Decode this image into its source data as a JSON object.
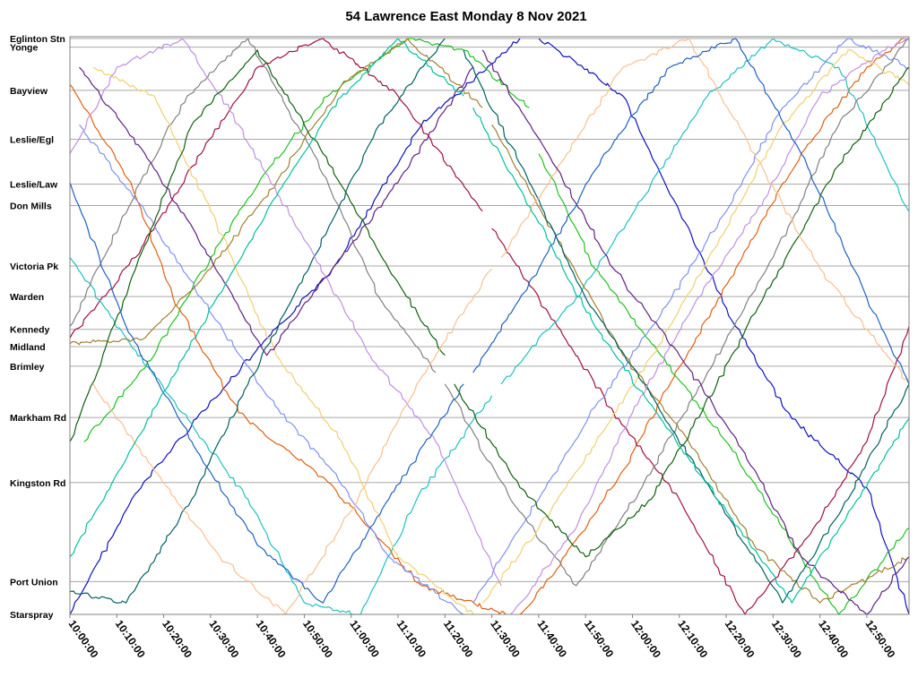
{
  "chart_data": {
    "type": "line",
    "title": "54 Lawrence East Monday 8 Nov 2021",
    "xlabel": "",
    "ylabel": "",
    "x_range": [
      "10:00:00",
      "12:59:00"
    ],
    "x_ticks": [
      "10:00:00",
      "10:10:00",
      "10:20:00",
      "10:30:00",
      "10:40:00",
      "10:50:00",
      "11:00:00",
      "11:10:00",
      "11:20:00",
      "11:30:00",
      "11:40:00",
      "11:50:00",
      "12:00:00",
      "12:10:00",
      "12:20:00",
      "12:30:00",
      "12:40:00",
      "12:50:00"
    ],
    "stops": [
      {
        "name": "Eglinton Stn",
        "pos": 0.0
      },
      {
        "name": "Yonge",
        "pos": 0.015
      },
      {
        "name": "Bayview",
        "pos": 0.09
      },
      {
        "name": "Leslie/Egl",
        "pos": 0.175
      },
      {
        "name": "Leslie/Law",
        "pos": 0.253
      },
      {
        "name": "Don Mills",
        "pos": 0.29
      },
      {
        "name": "Victoria Pk",
        "pos": 0.395
      },
      {
        "name": "Warden",
        "pos": 0.448
      },
      {
        "name": "Kennedy",
        "pos": 0.505
      },
      {
        "name": "Midland",
        "pos": 0.535
      },
      {
        "name": "Brimley",
        "pos": 0.569
      },
      {
        "name": "Markham Rd",
        "pos": 0.658
      },
      {
        "name": "Kingston Rd",
        "pos": 0.771
      },
      {
        "name": "Port Union",
        "pos": 0.943
      },
      {
        "name": "Starspray",
        "pos": 1.0
      }
    ],
    "grid": true,
    "legend": "none",
    "colors": [
      "#1010c0",
      "#e06010",
      "#20c020",
      "#a01040",
      "#20c0c0",
      "#8090f0",
      "#808080",
      "#f0d070",
      "#a08030",
      "#006060",
      "#c090e0",
      "#106010",
      "#f8c090",
      "#602080",
      "#2060c0",
      "#00c0a0"
    ],
    "series": [
      {
        "color": "#1010c0",
        "trips": [
          {
            "t": [
              0,
              14,
              27,
              39,
              56,
              75,
              96
            ],
            "s": [
              1.0,
              0.79,
              0.66,
              0.55,
              0.4,
              0.15,
              0.0
            ]
          },
          {
            "t": [
              100,
              104,
              118,
              130,
              142,
              154,
              170,
              179
            ],
            "s": [
              0.0,
              0.02,
              0.1,
              0.3,
              0.5,
              0.66,
              0.78,
              1.0
            ]
          }
        ]
      },
      {
        "color": "#e06010",
        "trips": [
          {
            "t": [
              0,
              13,
              22,
              36,
              55,
              75,
              93
            ],
            "s": [
              0.08,
              0.25,
              0.45,
              0.65,
              0.77,
              0.95,
              1.0
            ]
          },
          {
            "t": [
              96,
              104,
              118,
              128,
              142,
              156,
              170,
              178
            ],
            "s": [
              1.0,
              0.92,
              0.75,
              0.6,
              0.4,
              0.2,
              0.05,
              0.0
            ]
          }
        ]
      },
      {
        "color": "#20c020",
        "trips": [
          {
            "t": [
              3,
              18,
              30,
              42,
              55,
              72,
              84,
              98
            ],
            "s": [
              0.7,
              0.55,
              0.38,
              0.23,
              0.1,
              0.0,
              0.02,
              0.12
            ]
          },
          {
            "t": [
              100,
              112,
              126,
              140,
              152,
              164,
              179
            ],
            "s": [
              0.2,
              0.4,
              0.55,
              0.7,
              0.85,
              1.0,
              0.85
            ]
          }
        ]
      },
      {
        "color": "#a01040",
        "trips": [
          {
            "t": [
              0,
              14,
              28,
              40,
              54,
              70,
              88
            ],
            "s": [
              0.52,
              0.38,
              0.2,
              0.05,
              0.0,
              0.1,
              0.3
            ]
          },
          {
            "t": [
              90,
              104,
              116,
              130,
              144,
              158,
              170,
              179
            ],
            "s": [
              0.33,
              0.5,
              0.65,
              0.8,
              1.0,
              0.86,
              0.7,
              0.5
            ]
          }
        ]
      },
      {
        "color": "#20c0c0",
        "trips": [
          {
            "t": [
              0,
              12,
              24,
              38,
              50,
              62,
              74,
              90
            ],
            "s": [
              0.38,
              0.52,
              0.65,
              0.8,
              0.98,
              1.0,
              0.8,
              0.62
            ]
          },
          {
            "t": [
              92,
              108,
              122,
              136,
              150,
              164,
              179
            ],
            "s": [
              0.6,
              0.45,
              0.28,
              0.1,
              0.0,
              0.05,
              0.3
            ]
          }
        ]
      },
      {
        "color": "#8090f0",
        "trips": [
          {
            "t": [
              2,
              16,
              28,
              42,
              56,
              68,
              84
            ],
            "s": [
              0.15,
              0.3,
              0.45,
              0.62,
              0.75,
              0.9,
              1.0
            ]
          },
          {
            "t": [
              86,
              100,
              112,
              126,
              140,
              152,
              166,
              179
            ],
            "s": [
              0.98,
              0.8,
              0.64,
              0.48,
              0.3,
              0.12,
              0.0,
              0.05
            ]
          }
        ]
      },
      {
        "color": "#808080",
        "trips": [
          {
            "t": [
              0,
              15,
              25,
              38,
              52,
              66,
              78
            ],
            "s": [
              0.5,
              0.25,
              0.1,
              0.0,
              0.2,
              0.45,
              0.58
            ]
          },
          {
            "t": [
              80,
              94,
              108,
              122,
              136,
              150,
              164,
              179
            ],
            "s": [
              0.6,
              0.8,
              0.95,
              0.78,
              0.58,
              0.38,
              0.15,
              0.0
            ]
          }
        ]
      },
      {
        "color": "#f0d070",
        "trips": [
          {
            "t": [
              5,
              18,
              30,
              44,
              58,
              70,
              86
            ],
            "s": [
              0.05,
              0.1,
              0.3,
              0.55,
              0.7,
              0.9,
              1.0
            ]
          },
          {
            "t": [
              88,
              100,
              114,
              128,
              140,
              152,
              166,
              179
            ],
            "s": [
              0.98,
              0.85,
              0.68,
              0.5,
              0.33,
              0.15,
              0.02,
              0.08
            ]
          }
        ]
      },
      {
        "color": "#a08030",
        "trips": [
          {
            "t": [
              0,
              16,
              30,
              44,
              58,
              72,
              88
            ],
            "s": [
              0.53,
              0.52,
              0.4,
              0.25,
              0.08,
              0.0,
              0.12
            ]
          },
          {
            "t": [
              90,
              104,
              118,
              132,
              146,
              160,
              179
            ],
            "s": [
              0.15,
              0.35,
              0.55,
              0.7,
              0.88,
              0.98,
              0.9
            ]
          }
        ]
      },
      {
        "color": "#006060",
        "trips": [
          {
            "t": [
              0,
              12,
              26,
              38,
              52,
              66,
              80
            ],
            "s": [
              0.96,
              0.98,
              0.8,
              0.6,
              0.38,
              0.15,
              0.0
            ]
          },
          {
            "t": [
              84,
              98,
              110,
              124,
              138,
              152,
              166,
              179
            ],
            "s": [
              0.02,
              0.25,
              0.45,
              0.62,
              0.8,
              0.98,
              0.8,
              0.6
            ]
          }
        ]
      },
      {
        "color": "#c090e0",
        "trips": [
          {
            "t": [
              0,
              10,
              24,
              36,
              50,
              64,
              78,
              92
            ],
            "s": [
              0.2,
              0.05,
              0.0,
              0.15,
              0.35,
              0.55,
              0.7,
              0.95
            ]
          },
          {
            "t": [
              94,
              108,
              120,
              134,
              148,
              160,
              174,
              179
            ],
            "s": [
              1.0,
              0.85,
              0.65,
              0.45,
              0.28,
              0.1,
              0.02,
              0.0
            ]
          }
        ]
      },
      {
        "color": "#106010",
        "trips": [
          {
            "t": [
              0,
              14,
              26,
              40,
              54,
              68,
              80
            ],
            "s": [
              0.7,
              0.4,
              0.15,
              0.02,
              0.2,
              0.4,
              0.55
            ]
          },
          {
            "t": [
              82,
              96,
              110,
              124,
              138,
              150,
              164,
              179
            ],
            "s": [
              0.6,
              0.78,
              0.9,
              0.8,
              0.6,
              0.42,
              0.22,
              0.05
            ]
          }
        ]
      },
      {
        "color": "#f8c090",
        "trips": [
          {
            "t": [
              5,
              18,
              32,
              46,
              60,
              74,
              90
            ],
            "s": [
              0.6,
              0.75,
              0.9,
              1.0,
              0.82,
              0.6,
              0.4
            ]
          },
          {
            "t": [
              92,
              106,
              118,
              132,
              146,
              160,
              179
            ],
            "s": [
              0.38,
              0.2,
              0.05,
              0.0,
              0.2,
              0.4,
              0.6
            ]
          }
        ]
      },
      {
        "color": "#602080",
        "trips": [
          {
            "t": [
              2,
              16,
              30,
              42,
              56,
              70,
              86
            ],
            "s": [
              0.05,
              0.2,
              0.38,
              0.55,
              0.4,
              0.25,
              0.05
            ]
          },
          {
            "t": [
              88,
              102,
              116,
              130,
              144,
              156,
              170,
              179
            ],
            "s": [
              0.02,
              0.2,
              0.4,
              0.55,
              0.72,
              0.9,
              1.0,
              0.9
            ]
          }
        ]
      },
      {
        "color": "#2060c0",
        "trips": [
          {
            "t": [
              0,
              12,
              26,
              40,
              54,
              68,
              84
            ],
            "s": [
              0.25,
              0.5,
              0.7,
              0.88,
              0.98,
              0.8,
              0.6
            ]
          },
          {
            "t": [
              86,
              100,
              114,
              128,
              142,
              156,
              170,
              179
            ],
            "s": [
              0.58,
              0.4,
              0.2,
              0.05,
              0.0,
              0.2,
              0.45,
              0.6
            ]
          }
        ]
      },
      {
        "color": "#00c0a0",
        "trips": [
          {
            "t": [
              0,
              14,
              28,
              42,
              56,
              70,
              84
            ],
            "s": [
              0.9,
              0.7,
              0.5,
              0.3,
              0.12,
              0.0,
              0.1
            ]
          },
          {
            "t": [
              86,
              100,
              112,
              126,
              140,
              154,
              168,
              179
            ],
            "s": [
              0.12,
              0.32,
              0.5,
              0.66,
              0.82,
              0.98,
              0.8,
              0.66
            ]
          }
        ]
      }
    ]
  }
}
